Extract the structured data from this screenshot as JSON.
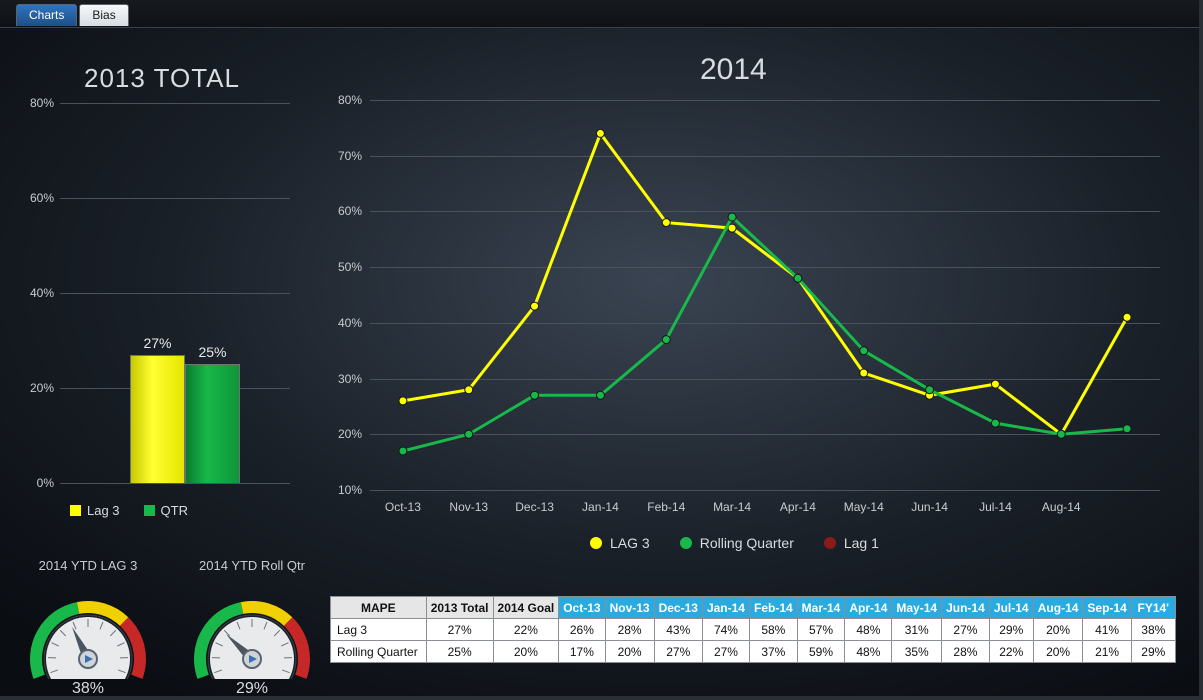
{
  "tabs": {
    "active": "Bias",
    "inactive": "Charts"
  },
  "left_title": "2013 TOTAL",
  "right_title": "2014",
  "bar_chart": {
    "type": "bar",
    "ymin": 0,
    "ymax": 80,
    "ystep": 20,
    "bars": [
      {
        "name": "Lag 3",
        "value": 27,
        "label": "27%",
        "color": "#ffff00"
      },
      {
        "name": "QTR",
        "value": 25,
        "label": "25%",
        "color": "#18b84a"
      }
    ],
    "legend": [
      {
        "label": "Lag 3",
        "color": "#ffff00"
      },
      {
        "label": "QTR",
        "color": "#18b84a"
      }
    ]
  },
  "line_chart": {
    "type": "line",
    "ymin": 10,
    "ymax": 80,
    "ystep": 10,
    "categories": [
      "Oct-13",
      "Nov-13",
      "Dec-13",
      "Jan-14",
      "Feb-14",
      "Mar-14",
      "Apr-14",
      "May-14",
      "Jun-14",
      "Jul-14",
      "Aug-14",
      ""
    ],
    "series": [
      {
        "name": "LAG 3",
        "color": "#ffff00",
        "values": [
          26,
          28,
          43,
          74,
          58,
          57,
          48,
          31,
          27,
          29,
          20,
          41
        ]
      },
      {
        "name": "Rolling Quarter",
        "color": "#18b84a",
        "values": [
          17,
          20,
          27,
          27,
          37,
          59,
          48,
          35,
          28,
          22,
          20,
          21
        ]
      },
      {
        "name": "Lag 1",
        "color": "#8b1a1a",
        "values": []
      }
    ],
    "line_width": 3,
    "marker_radius": 4
  },
  "gauges": [
    {
      "title": "2014 YTD LAG 3",
      "value": 38,
      "label": "38%",
      "min": 0,
      "max": 100
    },
    {
      "title": "2014 YTD Roll Qtr",
      "value": 29,
      "label": "29%",
      "min": 0,
      "max": 100
    }
  ],
  "gauge_colors": {
    "green": "#18b84a",
    "yellow": "#f0d000",
    "red": "#c62828",
    "face": "#e8eaec",
    "tick": "#6a737d"
  },
  "table": {
    "row_label_header": "MAPE",
    "grey_cols": [
      "2013 Total",
      "2014 Goal"
    ],
    "blue_cols": [
      "Oct-13",
      "Nov-13",
      "Dec-13",
      "Jan-14",
      "Feb-14",
      "Mar-14",
      "Apr-14",
      "May-14",
      "Jun-14",
      "Jul-14",
      "Aug-14",
      "Sep-14",
      "FY14'"
    ],
    "rows": [
      {
        "label": "Lag 3",
        "cells": [
          "27%",
          "22%",
          "26%",
          "28%",
          "43%",
          "74%",
          "58%",
          "57%",
          "48%",
          "31%",
          "27%",
          "29%",
          "20%",
          "41%",
          "38%"
        ]
      },
      {
        "label": "Rolling Quarter",
        "cells": [
          "25%",
          "20%",
          "17%",
          "20%",
          "27%",
          "27%",
          "37%",
          "59%",
          "48%",
          "35%",
          "28%",
          "22%",
          "20%",
          "21%",
          "29%"
        ]
      }
    ],
    "cell_bg": "#ffffff"
  }
}
